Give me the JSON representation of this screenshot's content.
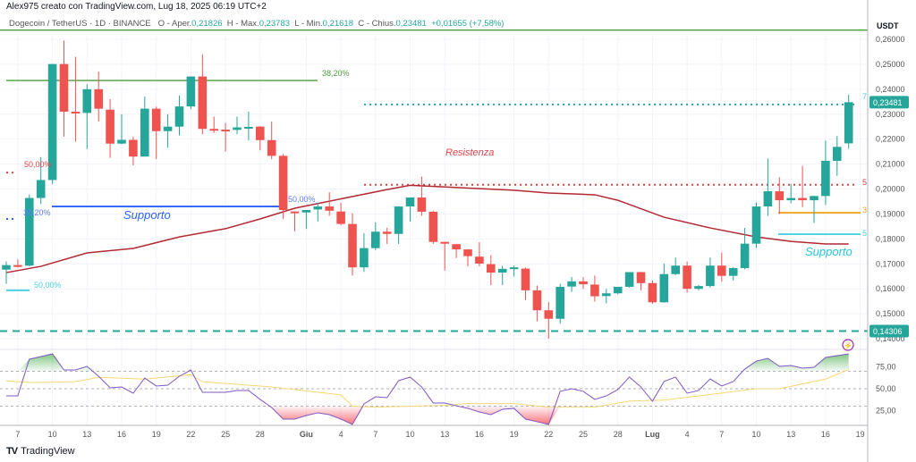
{
  "header": {
    "credit": "Alex975 creato con TradingView.com, Lug 18, 2025 06:19 UTC+2",
    "symbol": "Dogecoin / TetherUS · 1D · BINANCE",
    "open_label": "O - Aper.",
    "open": "0,21826",
    "high_label": "H - Max.",
    "high": "0,23783",
    "low_label": "L - Min.",
    "low": "0,21618",
    "close_label": "C - Chius.",
    "close": "0,23481",
    "change": "+0,01655 (+7,58%)"
  },
  "colors": {
    "up": "#26a69a",
    "down": "#ef5350",
    "ema": "#b22833",
    "rsi": "#7e57c2",
    "rsi_ma": "#f7d774",
    "fib_green": "#4c9a3f",
    "support_blue": "#2962ff",
    "cyan": "#4dd0e1",
    "orange": "#f5a623",
    "resistance": "#e0424a"
  },
  "price_axis": {
    "currency": "USDT",
    "ticks": [
      "0,26000",
      "0,25000",
      "0,24000",
      "0,23000",
      "0,22000",
      "0,21000",
      "0,20000",
      "0,19000",
      "0,18000",
      "0,17000",
      "0,16000",
      "0,15000",
      "0,14000"
    ],
    "tick_values": [
      0.26,
      0.25,
      0.24,
      0.23,
      0.22,
      0.21,
      0.2,
      0.19,
      0.18,
      0.17,
      0.16,
      0.15,
      0.14
    ],
    "last_price": "0,23481",
    "last_value": 0.23481,
    "line_price": "0,14306",
    "line_value": 0.14306
  },
  "rsi_axis": {
    "ticks": [
      "75,00",
      "50,00",
      "25,00"
    ],
    "tick_values": [
      75,
      50,
      25
    ]
  },
  "x_axis": [
    {
      "label": "7",
      "day": 1
    },
    {
      "label": "10",
      "day": 4
    },
    {
      "label": "13",
      "day": 7
    },
    {
      "label": "16",
      "day": 10
    },
    {
      "label": "19",
      "day": 13
    },
    {
      "label": "22",
      "day": 16
    },
    {
      "label": "25",
      "day": 19
    },
    {
      "label": "28",
      "day": 22
    },
    {
      "label": "Giu",
      "day": 26,
      "bold": true
    },
    {
      "label": "4",
      "day": 29
    },
    {
      "label": "7",
      "day": 32
    },
    {
      "label": "10",
      "day": 35
    },
    {
      "label": "13",
      "day": 38
    },
    {
      "label": "16",
      "day": 41
    },
    {
      "label": "19",
      "day": 44
    },
    {
      "label": "22",
      "day": 47
    },
    {
      "label": "25",
      "day": 50
    },
    {
      "label": "28",
      "day": 53
    },
    {
      "label": "Lug",
      "day": 56,
      "bold": true
    },
    {
      "label": "4",
      "day": 59
    },
    {
      "label": "7",
      "day": 62
    },
    {
      "label": "10",
      "day": 65
    },
    {
      "label": "13",
      "day": 68
    },
    {
      "label": "16",
      "day": 71
    },
    {
      "label": "19",
      "day": 74
    }
  ],
  "annotations": {
    "fib_382_top": "38,20%",
    "fib_50_left_red": "50,00%",
    "fib_382_left": "38,20%",
    "fib_50_left_cyan": "50,00%",
    "fib_50_mid": "50,00%",
    "support_left": "Supporto",
    "resistance": "Resistenza",
    "support_right": "Supporto",
    "mark_7": "7",
    "mark_5": "5",
    "mark_3": "3",
    "mark_5b": "5"
  },
  "levels": {
    "top_green": 0.2637,
    "fib_382": 0.2435,
    "support_left": 0.193,
    "red_left": 0.2066,
    "blue_left": 0.188,
    "cyan_left": 0.1594,
    "resistance": 0.2017,
    "teal_top": 0.2339,
    "orange": 0.1905,
    "cyan_right": 0.1819
  },
  "chart_data": {
    "type": "candlestick",
    "start_date": "May 6, 2025",
    "candles": [
      [
        0.1677,
        0.171,
        0.162,
        0.1695
      ],
      [
        0.1695,
        0.1718,
        0.1685,
        0.1694
      ],
      [
        0.1693,
        0.1978,
        0.169,
        0.1964
      ],
      [
        0.1964,
        0.2128,
        0.194,
        0.2036
      ],
      [
        0.2036,
        0.2501,
        0.202,
        0.2501
      ],
      [
        0.2501,
        0.2595,
        0.221,
        0.231
      ],
      [
        0.231,
        0.253,
        0.219,
        0.2305
      ],
      [
        0.2305,
        0.242,
        0.216,
        0.24
      ],
      [
        0.24,
        0.247,
        0.227,
        0.2322
      ],
      [
        0.2318,
        0.236,
        0.2125,
        0.2182
      ],
      [
        0.2182,
        0.23,
        0.218,
        0.2197
      ],
      [
        0.2197,
        0.221,
        0.2095,
        0.213
      ],
      [
        0.213,
        0.237,
        0.213,
        0.2322
      ],
      [
        0.2322,
        0.233,
        0.212,
        0.2232
      ],
      [
        0.2232,
        0.23,
        0.2165,
        0.225
      ],
      [
        0.225,
        0.2375,
        0.2215,
        0.2331
      ],
      [
        0.2331,
        0.2451,
        0.232,
        0.2451
      ],
      [
        0.2451,
        0.254,
        0.222,
        0.2241
      ],
      [
        0.2241,
        0.229,
        0.2225,
        0.2238
      ],
      [
        0.2238,
        0.2265,
        0.215,
        0.2237
      ],
      [
        0.2237,
        0.229,
        0.222,
        0.2247
      ],
      [
        0.2247,
        0.231,
        0.2195,
        0.2249
      ],
      [
        0.225,
        0.2252,
        0.2155,
        0.2196
      ],
      [
        0.2196,
        0.227,
        0.212,
        0.2133
      ],
      [
        0.2133,
        0.214,
        0.188,
        0.1916
      ],
      [
        0.191,
        0.191,
        0.183,
        0.1905
      ],
      [
        0.1906,
        0.1916,
        0.184,
        0.1916
      ],
      [
        0.1918,
        0.1945,
        0.187,
        0.193
      ],
      [
        0.193,
        0.1987,
        0.1893,
        0.1913
      ],
      [
        0.191,
        0.1945,
        0.1855,
        0.186
      ],
      [
        0.186,
        0.1903,
        0.1653,
        0.1686
      ],
      [
        0.1686,
        0.1823,
        0.1668,
        0.1763
      ],
      [
        0.1763,
        0.1866,
        0.1755,
        0.1829
      ],
      [
        0.1829,
        0.1845,
        0.178,
        0.182
      ],
      [
        0.182,
        0.193,
        0.178,
        0.193
      ],
      [
        0.193,
        0.1966,
        0.187,
        0.1966
      ],
      [
        0.1966,
        0.205,
        0.1893,
        0.1909
      ],
      [
        0.1909,
        0.1913,
        0.178,
        0.1788
      ],
      [
        0.1788,
        0.1788,
        0.1673,
        0.1781
      ],
      [
        0.1779,
        0.1779,
        0.1723,
        0.1758
      ],
      [
        0.1758,
        0.1758,
        0.169,
        0.1731
      ],
      [
        0.1729,
        0.1787,
        0.169,
        0.1701
      ],
      [
        0.1699,
        0.1735,
        0.1615,
        0.1665
      ],
      [
        0.1665,
        0.1693,
        0.1615,
        0.168
      ],
      [
        0.1685,
        0.1693,
        0.165,
        0.1686
      ],
      [
        0.1681,
        0.1686,
        0.1555,
        0.1594
      ],
      [
        0.1594,
        0.1613,
        0.147,
        0.1514
      ],
      [
        0.1514,
        0.1547,
        0.14,
        0.148
      ],
      [
        0.148,
        0.162,
        0.146,
        0.1608
      ],
      [
        0.1609,
        0.1647,
        0.1588,
        0.163
      ],
      [
        0.163,
        0.1647,
        0.16,
        0.1618
      ],
      [
        0.1617,
        0.1653,
        0.1549,
        0.157
      ],
      [
        0.1571,
        0.16,
        0.1542,
        0.1582
      ],
      [
        0.1582,
        0.1608,
        0.1578,
        0.1608
      ],
      [
        0.1608,
        0.1667,
        0.1605,
        0.1667
      ],
      [
        0.1667,
        0.1668,
        0.1594,
        0.1623
      ],
      [
        0.1623,
        0.1633,
        0.154,
        0.1546
      ],
      [
        0.1546,
        0.1701,
        0.1544,
        0.1659
      ],
      [
        0.1659,
        0.1725,
        0.1655,
        0.1693
      ],
      [
        0.1693,
        0.1709,
        0.1585,
        0.16
      ],
      [
        0.16,
        0.1615,
        0.1594,
        0.1611
      ],
      [
        0.1611,
        0.1725,
        0.1605,
        0.1693
      ],
      [
        0.1693,
        0.1745,
        0.1629,
        0.1652
      ],
      [
        0.1652,
        0.1687,
        0.1633,
        0.1683
      ],
      [
        0.1683,
        0.1844,
        0.1678,
        0.1781
      ],
      [
        0.1781,
        0.1946,
        0.1764,
        0.193
      ],
      [
        0.193,
        0.2122,
        0.1892,
        0.1991
      ],
      [
        0.1991,
        0.2047,
        0.19,
        0.1955
      ],
      [
        0.1955,
        0.2021,
        0.1943,
        0.1964
      ],
      [
        0.1964,
        0.2093,
        0.1928,
        0.1955
      ],
      [
        0.1955,
        0.1972,
        0.1864,
        0.1972
      ],
      [
        0.1972,
        0.2194,
        0.1936,
        0.2113
      ],
      [
        0.2113,
        0.2212,
        0.2053,
        0.2169
      ],
      [
        0.2183,
        0.2378,
        0.2162,
        0.2348
      ]
    ],
    "ema": [
      [
        0,
        0.1665
      ],
      [
        3,
        0.169
      ],
      [
        7,
        0.1744
      ],
      [
        11,
        0.1762
      ],
      [
        15,
        0.1808
      ],
      [
        19,
        0.1841
      ],
      [
        22,
        0.188
      ],
      [
        25,
        0.1923
      ],
      [
        33,
        0.1998
      ],
      [
        35,
        0.2015
      ],
      [
        44,
        0.1995
      ],
      [
        47,
        0.1984
      ],
      [
        51,
        0.1977
      ],
      [
        53,
        0.1955
      ],
      [
        57,
        0.1887
      ],
      [
        61,
        0.1844
      ],
      [
        65,
        0.1808
      ],
      [
        68,
        0.179
      ],
      [
        71,
        0.178
      ],
      [
        73,
        0.178
      ]
    ],
    "rsi": [
      41.8,
      41.8,
      83.7,
      86.7,
      89.8,
      71.4,
      71.4,
      75.5,
      64.3,
      51,
      52,
      44.9,
      62.2,
      53.1,
      54.1,
      64.3,
      71.4,
      45.9,
      45.9,
      45.9,
      48,
      48,
      37.8,
      28.6,
      15.3,
      15.3,
      19.4,
      22.5,
      20.4,
      15.3,
      9.2,
      32.7,
      40.8,
      39.8,
      59.2,
      63.3,
      52,
      33.7,
      33.7,
      30.6,
      27.6,
      23.5,
      20.4,
      26.5,
      27.6,
      15.3,
      12.3,
      9.2,
      47,
      50,
      47,
      37.8,
      41.8,
      49,
      63.3,
      52,
      35.7,
      58.2,
      63.3,
      44.9,
      48,
      61.2,
      53.1,
      58.2,
      72.4,
      81.6,
      84.7,
      75.5,
      76.5,
      73.5,
      74.5,
      85.7,
      87.7,
      89.8
    ],
    "rsi_ma": [
      [
        0,
        59
      ],
      [
        2,
        57
      ],
      [
        6,
        58
      ],
      [
        8,
        63
      ],
      [
        12,
        61
      ],
      [
        16,
        66
      ],
      [
        17,
        58
      ],
      [
        23,
        52
      ],
      [
        29,
        43
      ],
      [
        30,
        30
      ],
      [
        32,
        29
      ],
      [
        38,
        31
      ],
      [
        40,
        33
      ],
      [
        44,
        33
      ],
      [
        47,
        29
      ],
      [
        51,
        29
      ],
      [
        54,
        36
      ],
      [
        57,
        37
      ],
      [
        62,
        45
      ],
      [
        65,
        50
      ],
      [
        67,
        50
      ],
      [
        71,
        61
      ],
      [
        73,
        72
      ]
    ],
    "rsi_levels": [
      70,
      50,
      30
    ]
  }
}
